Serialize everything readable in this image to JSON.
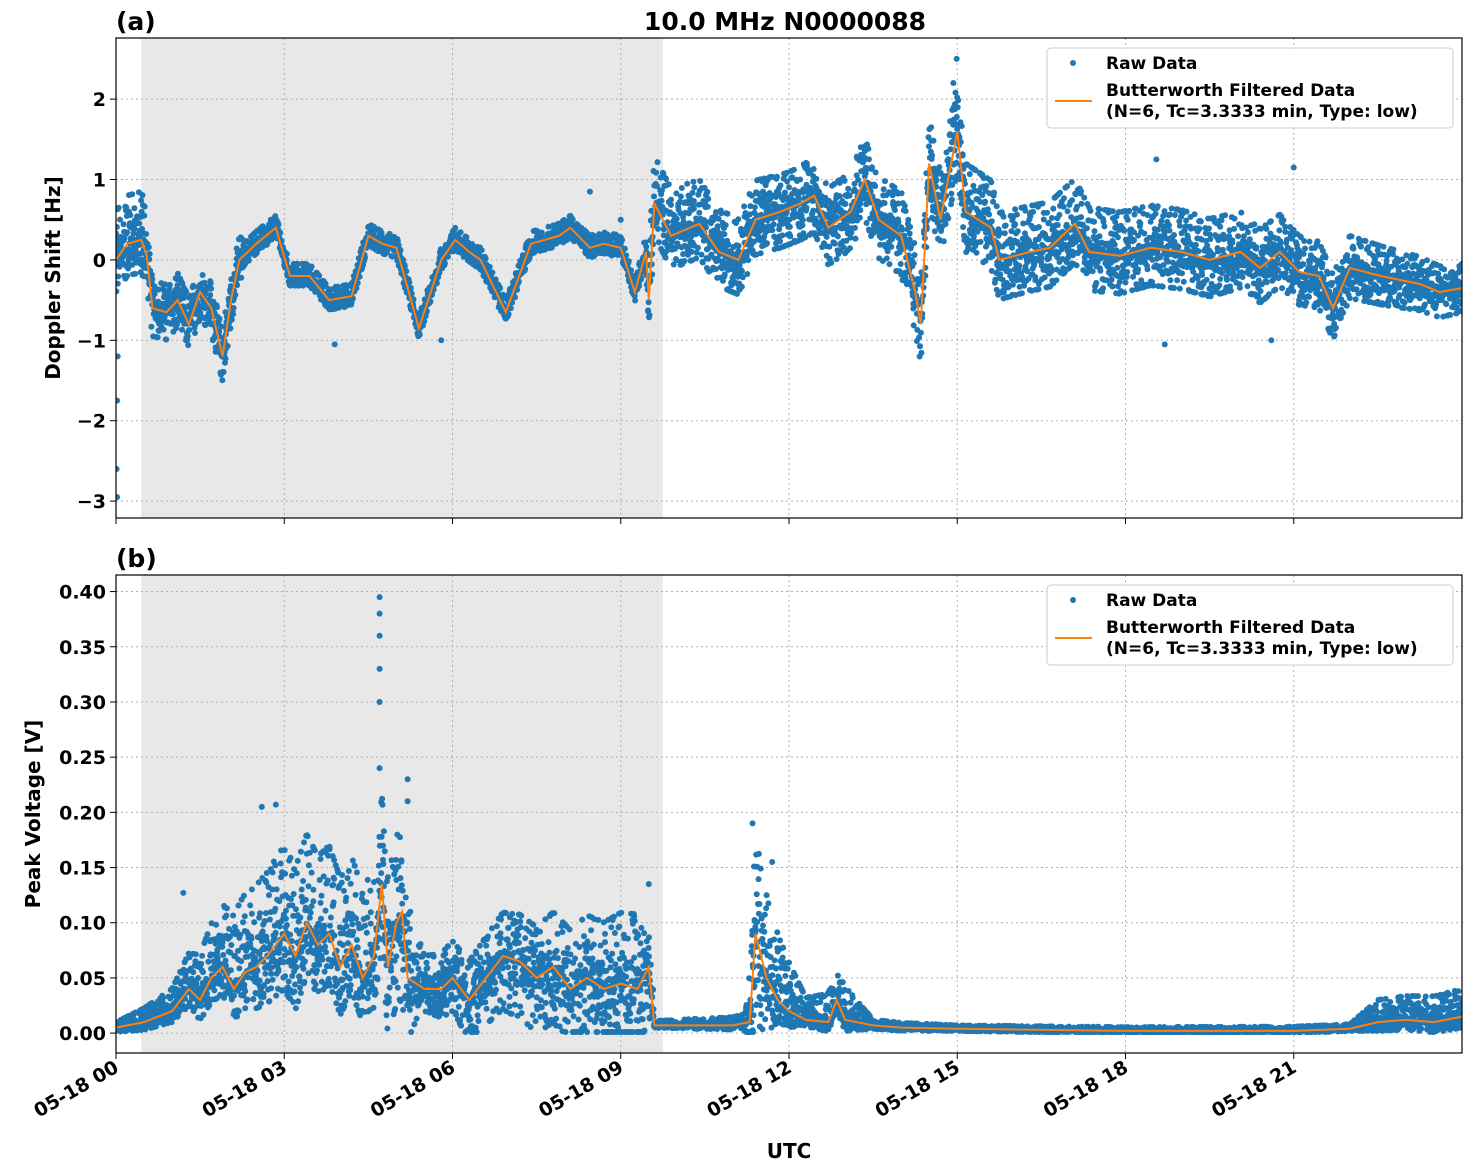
{
  "title": "10.0 MHz N0000088",
  "xlabel": "UTC",
  "colors": {
    "raw": "#1f77b4",
    "filtered": "#ff7f0e",
    "shade": "#e8e8e8"
  },
  "legend": {
    "raw_label": "Raw Data",
    "filtered_label_1": "Butterworth Filtered Data",
    "filtered_label_2": "(N=6, Tc=3.3333 min, Type: low)",
    "placement": "top-right"
  },
  "chart_data": [
    {
      "panel": "(a)",
      "type": "scatter+line",
      "ylabel": "Doppler Shift [Hz]",
      "xlim_hours": [
        0,
        24
      ],
      "ylim": [
        -3.21,
        2.76
      ],
      "yticks": [
        2,
        1,
        0,
        -1,
        -2,
        -3
      ],
      "ytick_labels": [
        "2",
        "1",
        "0",
        "−1",
        "−2",
        "−3"
      ],
      "xticks_hours": [
        0,
        3,
        6,
        9,
        12,
        15,
        18,
        21
      ],
      "xtick_labels": [
        "05-18 00",
        "05-18 03",
        "05-18 06",
        "05-18 09",
        "05-18 12",
        "05-18 15",
        "05-18 18",
        "05-18 21"
      ],
      "grid": true,
      "shaded_interval_hours": [
        0.45,
        9.75
      ],
      "filtered": [
        [
          0,
          0.0
        ],
        [
          0.2,
          0.2
        ],
        [
          0.45,
          0.25
        ],
        [
          0.55,
          0.05
        ],
        [
          0.65,
          -0.6
        ],
        [
          0.9,
          -0.65
        ],
        [
          1.1,
          -0.5
        ],
        [
          1.3,
          -0.8
        ],
        [
          1.5,
          -0.4
        ],
        [
          1.7,
          -0.6
        ],
        [
          1.9,
          -1.2
        ],
        [
          2.05,
          -0.5
        ],
        [
          2.2,
          0.0
        ],
        [
          2.5,
          0.2
        ],
        [
          2.85,
          0.4
        ],
        [
          3.1,
          -0.2
        ],
        [
          3.45,
          -0.2
        ],
        [
          3.8,
          -0.5
        ],
        [
          4.2,
          -0.45
        ],
        [
          4.5,
          0.3
        ],
        [
          4.75,
          0.2
        ],
        [
          5.0,
          0.15
        ],
        [
          5.4,
          -0.85
        ],
        [
          5.8,
          0.0
        ],
        [
          6.05,
          0.25
        ],
        [
          6.3,
          0.1
        ],
        [
          6.5,
          0.0
        ],
        [
          6.95,
          -0.65
        ],
        [
          7.4,
          0.2
        ],
        [
          7.9,
          0.3
        ],
        [
          8.1,
          0.4
        ],
        [
          8.45,
          0.15
        ],
        [
          8.7,
          0.2
        ],
        [
          9.0,
          0.15
        ],
        [
          9.25,
          -0.4
        ],
        [
          9.45,
          0.1
        ],
        [
          9.5,
          -0.5
        ],
        [
          9.6,
          0.7
        ],
        [
          9.9,
          0.3
        ],
        [
          10.4,
          0.45
        ],
        [
          10.75,
          0.1
        ],
        [
          11.1,
          0.0
        ],
        [
          11.4,
          0.5
        ],
        [
          11.85,
          0.6
        ],
        [
          12.2,
          0.7
        ],
        [
          12.45,
          0.8
        ],
        [
          12.7,
          0.4
        ],
        [
          13.1,
          0.6
        ],
        [
          13.35,
          1.0
        ],
        [
          13.6,
          0.5
        ],
        [
          14.0,
          0.3
        ],
        [
          14.25,
          -0.4
        ],
        [
          14.35,
          -0.8
        ],
        [
          14.5,
          1.2
        ],
        [
          14.7,
          0.5
        ],
        [
          15.0,
          1.6
        ],
        [
          15.15,
          0.6
        ],
        [
          15.6,
          0.4
        ],
        [
          15.75,
          0.0
        ],
        [
          16.3,
          0.1
        ],
        [
          16.65,
          0.15
        ],
        [
          17.1,
          0.45
        ],
        [
          17.35,
          0.1
        ],
        [
          17.9,
          0.05
        ],
        [
          18.45,
          0.15
        ],
        [
          19.0,
          0.1
        ],
        [
          19.5,
          0.0
        ],
        [
          20.05,
          0.1
        ],
        [
          20.4,
          -0.1
        ],
        [
          20.75,
          0.1
        ],
        [
          21.1,
          -0.15
        ],
        [
          21.45,
          -0.2
        ],
        [
          21.7,
          -0.6
        ],
        [
          22.0,
          -0.1
        ],
        [
          22.55,
          -0.2
        ],
        [
          22.9,
          -0.25
        ],
        [
          23.25,
          -0.3
        ],
        [
          23.6,
          -0.4
        ],
        [
          24.0,
          -0.35
        ]
      ],
      "raw_spread_below_above": [
        [
          0,
          0.4,
          0.6
        ],
        [
          0.5,
          0.4,
          0.6
        ],
        [
          0.6,
          0.35,
          0.35
        ],
        [
          2.2,
          0.3,
          0.3
        ],
        [
          2.3,
          0.12,
          0.15
        ],
        [
          9.4,
          0.12,
          0.15
        ],
        [
          9.55,
          0.4,
          0.6
        ],
        [
          12,
          0.45,
          0.45
        ],
        [
          15,
          0.5,
          0.6
        ],
        [
          20,
          0.45,
          0.5
        ],
        [
          24,
          0.3,
          0.3
        ]
      ],
      "raw_outliers": [
        [
          0.02,
          -1.75
        ],
        [
          0.01,
          -2.6
        ],
        [
          0.02,
          -2.95
        ],
        [
          0.03,
          -1.2
        ],
        [
          8.45,
          0.85
        ],
        [
          9.0,
          0.5
        ],
        [
          14.99,
          2.5
        ],
        [
          14.93,
          2.2
        ],
        [
          18.55,
          1.25
        ],
        [
          21.0,
          1.15
        ],
        [
          18.7,
          -1.05
        ],
        [
          20.6,
          -1.0
        ],
        [
          3.9,
          -1.05
        ],
        [
          5.8,
          -1.0
        ]
      ]
    },
    {
      "panel": "(b)",
      "type": "scatter+line",
      "ylabel": "Peak Voltage [V]",
      "xlim_hours": [
        0,
        24
      ],
      "ylim": [
        -0.018,
        0.415
      ],
      "yticks": [
        0,
        0.05,
        0.1,
        0.15,
        0.2,
        0.25,
        0.3,
        0.35,
        0.4
      ],
      "ytick_labels": [
        "0.00",
        "0.05",
        "0.10",
        "0.15",
        "0.20",
        "0.25",
        "0.30",
        "0.35",
        "0.40"
      ],
      "xticks_hours": [
        0,
        3,
        6,
        9,
        12,
        15,
        18,
        21
      ],
      "xtick_labels": [
        "05-18 00",
        "05-18 03",
        "05-18 06",
        "05-18 09",
        "05-18 12",
        "05-18 15",
        "05-18 18",
        "05-18 21"
      ],
      "grid": true,
      "shaded_interval_hours": [
        0.45,
        9.75
      ],
      "filtered": [
        [
          0,
          0.005
        ],
        [
          0.5,
          0.01
        ],
        [
          1.0,
          0.02
        ],
        [
          1.3,
          0.04
        ],
        [
          1.5,
          0.03
        ],
        [
          1.7,
          0.05
        ],
        [
          1.9,
          0.06
        ],
        [
          2.1,
          0.04
        ],
        [
          2.3,
          0.055
        ],
        [
          2.5,
          0.06
        ],
        [
          2.7,
          0.07
        ],
        [
          2.85,
          0.08
        ],
        [
          3.0,
          0.09
        ],
        [
          3.2,
          0.07
        ],
        [
          3.4,
          0.1
        ],
        [
          3.6,
          0.08
        ],
        [
          3.8,
          0.09
        ],
        [
          4.0,
          0.06
        ],
        [
          4.2,
          0.08
        ],
        [
          4.4,
          0.05
        ],
        [
          4.6,
          0.07
        ],
        [
          4.74,
          0.135
        ],
        [
          4.85,
          0.06
        ],
        [
          5.0,
          0.1
        ],
        [
          5.1,
          0.11
        ],
        [
          5.2,
          0.05
        ],
        [
          5.5,
          0.04
        ],
        [
          5.8,
          0.04
        ],
        [
          6.0,
          0.05
        ],
        [
          6.3,
          0.03
        ],
        [
          6.6,
          0.05
        ],
        [
          6.9,
          0.07
        ],
        [
          7.2,
          0.065
        ],
        [
          7.5,
          0.05
        ],
        [
          7.8,
          0.06
        ],
        [
          8.1,
          0.04
        ],
        [
          8.4,
          0.05
        ],
        [
          8.7,
          0.04
        ],
        [
          9.0,
          0.045
        ],
        [
          9.3,
          0.04
        ],
        [
          9.5,
          0.06
        ],
        [
          9.6,
          0.007
        ],
        [
          10,
          0.007
        ],
        [
          11,
          0.007
        ],
        [
          11.3,
          0.01
        ],
        [
          11.4,
          0.09
        ],
        [
          11.6,
          0.05
        ],
        [
          11.8,
          0.03
        ],
        [
          12.0,
          0.02
        ],
        [
          12.3,
          0.012
        ],
        [
          12.7,
          0.01
        ],
        [
          12.85,
          0.03
        ],
        [
          13.0,
          0.012
        ],
        [
          13.5,
          0.007
        ],
        [
          14,
          0.005
        ],
        [
          15,
          0.004
        ],
        [
          18,
          0.002
        ],
        [
          21,
          0.002
        ],
        [
          22.0,
          0.004
        ],
        [
          22.5,
          0.01
        ],
        [
          23,
          0.012
        ],
        [
          23.5,
          0.01
        ],
        [
          24,
          0.015
        ]
      ],
      "raw_spread_below_above": [
        [
          0,
          0.004,
          0.005
        ],
        [
          1,
          0.01,
          0.02
        ],
        [
          2.2,
          0.03,
          0.07
        ],
        [
          3,
          0.05,
          0.08
        ],
        [
          4.5,
          0.04,
          0.08
        ],
        [
          5.1,
          0.08,
          0.08
        ],
        [
          5.5,
          0.02,
          0.03
        ],
        [
          7,
          0.05,
          0.04
        ],
        [
          9.5,
          0.05,
          0.07
        ],
        [
          9.6,
          0.002,
          0.004
        ],
        [
          11.2,
          0.004,
          0.008
        ],
        [
          11.4,
          0.08,
          0.09
        ],
        [
          11.8,
          0.02,
          0.06
        ],
        [
          12.3,
          0.006,
          0.02
        ],
        [
          13.0,
          0.01,
          0.03
        ],
        [
          13.5,
          0.003,
          0.005
        ],
        [
          15,
          0.002,
          0.003
        ],
        [
          22,
          0.002,
          0.004
        ],
        [
          22.5,
          0.008,
          0.02
        ],
        [
          24,
          0.01,
          0.025
        ]
      ],
      "raw_outliers": [
        [
          4.7,
          0.395
        ],
        [
          4.7,
          0.38
        ],
        [
          4.7,
          0.36
        ],
        [
          4.7,
          0.33
        ],
        [
          4.7,
          0.3
        ],
        [
          4.7,
          0.24
        ],
        [
          5.2,
          0.23
        ],
        [
          5.2,
          0.21
        ],
        [
          2.6,
          0.205
        ],
        [
          2.85,
          0.207
        ],
        [
          11.35,
          0.19
        ],
        [
          11.7,
          0.155
        ],
        [
          9.5,
          0.135
        ],
        [
          1.2,
          0.127
        ]
      ]
    }
  ]
}
